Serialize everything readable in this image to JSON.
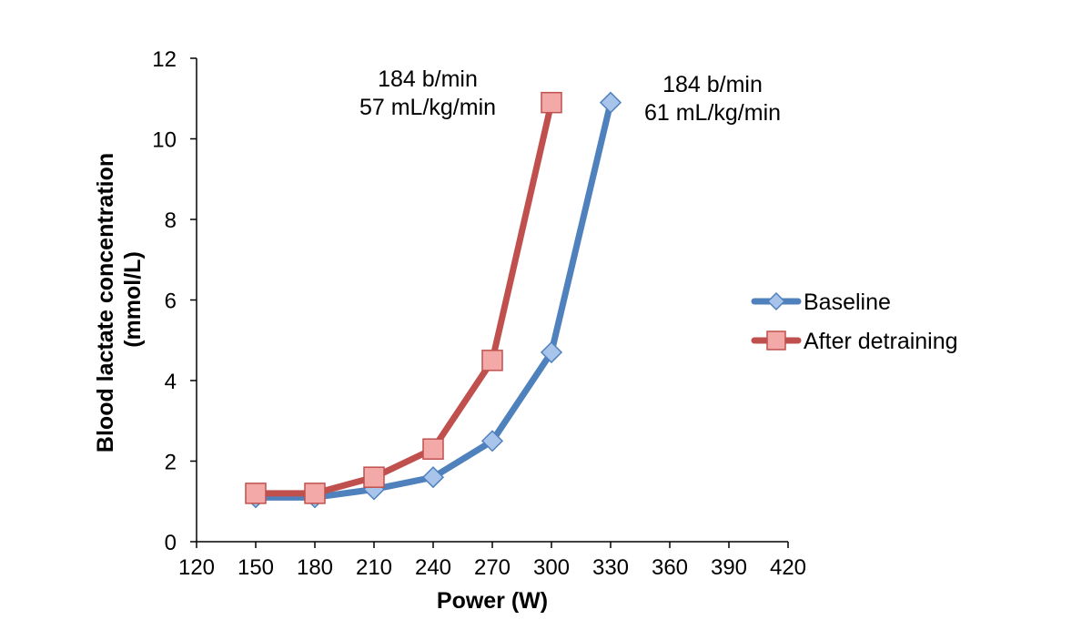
{
  "chart_data": {
    "type": "line",
    "title": "",
    "xlabel": "Power (W)",
    "ylabel_lines": [
      "Blood lactate concentration",
      "(mmol/L)"
    ],
    "xlim": [
      120,
      420
    ],
    "ylim": [
      0,
      12
    ],
    "x_ticks": [
      120,
      150,
      180,
      210,
      240,
      270,
      300,
      330,
      360,
      390,
      420
    ],
    "y_ticks": [
      0,
      2,
      4,
      6,
      8,
      10,
      12
    ],
    "grid": false,
    "legend_position": "right",
    "series": [
      {
        "name": "Baseline",
        "color": "#4F81BD",
        "marker": "diamond",
        "marker_fill": "#A9C4EB",
        "x": [
          150,
          180,
          210,
          240,
          270,
          300,
          330
        ],
        "y": [
          1.1,
          1.1,
          1.3,
          1.6,
          2.5,
          4.7,
          10.9
        ]
      },
      {
        "name": "After detraining",
        "color": "#C0504D",
        "marker": "square",
        "marker_fill": "#F2A9A7",
        "x": [
          150,
          180,
          210,
          240,
          270,
          300
        ],
        "y": [
          1.2,
          1.2,
          1.6,
          2.3,
          4.5,
          10.9
        ]
      }
    ],
    "annotations": [
      {
        "lines": [
          "184 b/min",
          "57 mL/kg/min"
        ],
        "near": "After detraining peak"
      },
      {
        "lines": [
          "184 b/min",
          "61 mL/kg/min"
        ],
        "near": "Baseline peak"
      }
    ]
  }
}
